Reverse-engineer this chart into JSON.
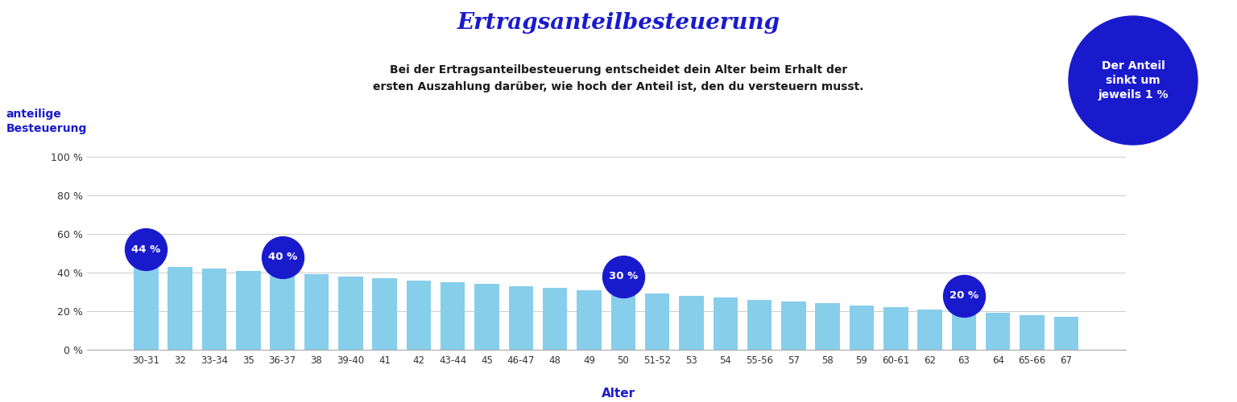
{
  "title": "Ertragsanteilbesteuerung",
  "subtitle_line1": "Bei der Ertragsanteilbesteuerung entscheidet dein Alter beim Erhalt der",
  "subtitle_line2": "ersten Auszahlung darüber, wie hoch der Anteil ist, den du versteuern musst.",
  "ylabel_line1": "anteilige",
  "ylabel_line2": "Besteuerung",
  "xlabel": "Alter",
  "categories": [
    "30-31",
    "32",
    "33-34",
    "35",
    "36-37",
    "38",
    "39-40",
    "41",
    "42",
    "43-44",
    "45",
    "46-47",
    "48",
    "49",
    "50",
    "51-52",
    "53",
    "54",
    "55-56",
    "57",
    "58",
    "59",
    "60-61",
    "62",
    "63",
    "64",
    "65-66",
    "67"
  ],
  "values": [
    44,
    43,
    42,
    41,
    40,
    39,
    38,
    37,
    36,
    35,
    34,
    33,
    32,
    31,
    30,
    29,
    28,
    27,
    26,
    25,
    24,
    23,
    22,
    21,
    20,
    19,
    18,
    17
  ],
  "bar_color": "#87CEEB",
  "bubble_indices": [
    0,
    4,
    14,
    24
  ],
  "bubble_labels": [
    "44 %",
    "40 %",
    "30 %",
    "20 %"
  ],
  "bubble_color": "#1a1acd",
  "title_color": "#1a1acd",
  "ylabel_color": "#1a1acd",
  "xlabel_color": "#1a1acd",
  "subtitle_color": "#1a1a1a",
  "grid_color": "#cccccc",
  "annotation_text": "Der Anteil\nsinkt um\njeweils 1 %",
  "annotation_bg_color": "#1a1acd",
  "annotation_text_color": "#ffffff",
  "ylim": [
    0,
    100
  ],
  "yticks": [
    0,
    20,
    40,
    60,
    80,
    100
  ],
  "ytick_labels": [
    "0 %",
    "20 %",
    "40 %",
    "60 %",
    "80 %",
    "100 %"
  ],
  "background_color": "#ffffff"
}
